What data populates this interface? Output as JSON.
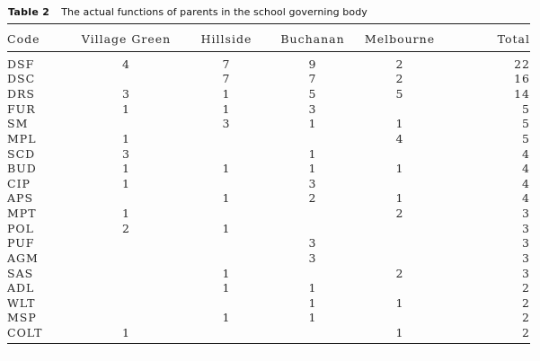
{
  "title": {
    "label": "Table 2",
    "text": "The actual functions of parents in the school governing body"
  },
  "table": {
    "columns": [
      "Code",
      "Village Green",
      "Hillside",
      "Buchanan",
      "Melbourne",
      "Total"
    ],
    "rows": [
      [
        "DSF",
        "4",
        "7",
        "9",
        "2",
        "22"
      ],
      [
        "DSC",
        "",
        "7",
        "7",
        "2",
        "16"
      ],
      [
        "DRS",
        "3",
        "1",
        "5",
        "5",
        "14"
      ],
      [
        "FUR",
        "1",
        "1",
        "3",
        "",
        "5"
      ],
      [
        "SM",
        "",
        "3",
        "1",
        "1",
        "5"
      ],
      [
        "MPL",
        "1",
        "",
        "",
        "4",
        "5"
      ],
      [
        "SCD",
        "3",
        "",
        "1",
        "",
        "4"
      ],
      [
        "BUD",
        "1",
        "1",
        "1",
        "1",
        "4"
      ],
      [
        "CIP",
        "1",
        "",
        "3",
        "",
        "4"
      ],
      [
        "APS",
        "",
        "1",
        "2",
        "1",
        "4"
      ],
      [
        "MPT",
        "1",
        "",
        "",
        "2",
        "3"
      ],
      [
        "POL",
        "2",
        "1",
        "",
        "",
        "3"
      ],
      [
        "PUF",
        "",
        "",
        "3",
        "",
        "3"
      ],
      [
        "AGM",
        "",
        "",
        "3",
        "",
        "3"
      ],
      [
        "SAS",
        "",
        "1",
        "",
        "2",
        "3"
      ],
      [
        "ADL",
        "",
        "1",
        "1",
        "",
        "2"
      ],
      [
        "WLT",
        "",
        "",
        "1",
        "1",
        "2"
      ],
      [
        "MSP",
        "",
        "1",
        "1",
        "",
        "2"
      ],
      [
        "COLT",
        "1",
        "",
        "",
        "1",
        "2"
      ]
    ]
  }
}
